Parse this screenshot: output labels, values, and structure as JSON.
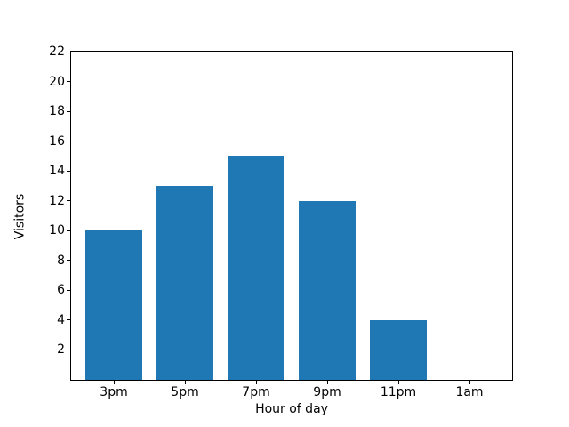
{
  "chart_data": {
    "type": "bar",
    "categories": [
      "3pm",
      "5pm",
      "7pm",
      "9pm",
      "11pm",
      "1am"
    ],
    "values": [
      10,
      13,
      15,
      12,
      4,
      0
    ],
    "title": "",
    "xlabel": "Hour of day",
    "ylabel": "Visitors",
    "ylim": [
      0,
      22
    ],
    "yticks": [
      2,
      4,
      6,
      8,
      10,
      12,
      14,
      16,
      18,
      20,
      22
    ],
    "bar_color": "#1f77b4",
    "axis_color": "#000000",
    "background_color": "#ffffff",
    "grid": false,
    "legend": null
  }
}
